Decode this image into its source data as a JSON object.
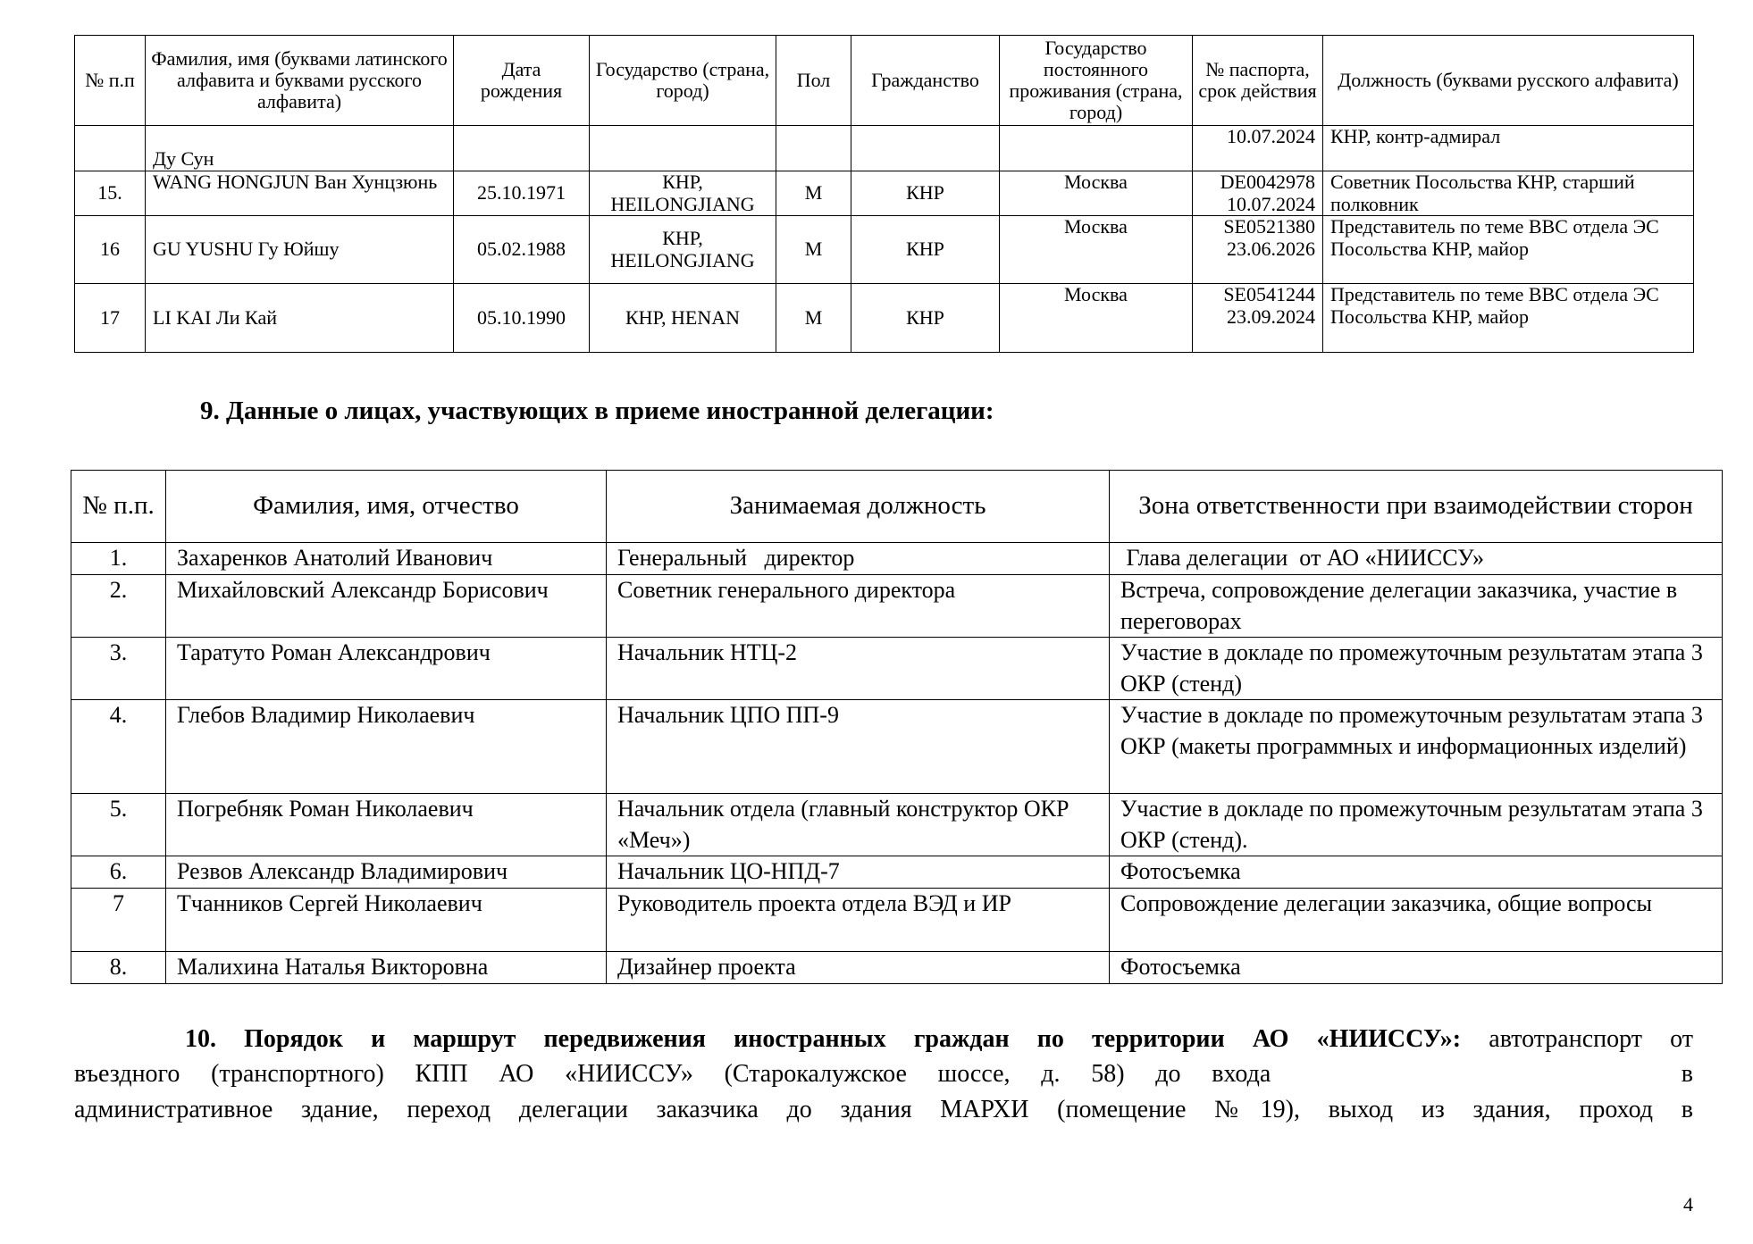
{
  "table1": {
    "headers": [
      "№ п.п",
      "Фамилия, имя (буквами латинского алфавита и буквами русского алфавита)",
      "Дата рождения",
      "Государство (страна, город)",
      "Пол",
      "Гражданство",
      "Государство постоянного проживания (страна, город)",
      "№ паспорта, срок действия",
      "Должность (буквами русского алфавита)"
    ],
    "rows": [
      {
        "num": "",
        "name": "Ду Сун",
        "dob": "",
        "origin": "",
        "sex": "",
        "citizenship": "",
        "residence": "",
        "passport": "10.07.2024",
        "position": "КНР, контр-адмирал"
      },
      {
        "num": "15.",
        "name": "WANG HONGJUN Ван Хунцзюнь",
        "dob": "25.10.1971",
        "origin": "КНР, HEILONGJIANG",
        "sex": "М",
        "citizenship": "КНР",
        "residence": "Москва",
        "passport": "DE0042978 10.07.2024",
        "position": "Советник Посольства КНР, старший полковник"
      },
      {
        "num": "16",
        "name": "GU YUSHU Гу Юйшу",
        "dob": "05.02.1988",
        "origin": "КНР, HEILONGJIANG",
        "sex": "М",
        "citizenship": "КНР",
        "residence": "Москва",
        "passport": "SE0521380 23.06.2026",
        "position": "Представитель по теме ВВС отдела ЭС Посольства КНР, майор"
      },
      {
        "num": "17",
        "name": "LI KAI Ли Кай",
        "dob": "05.10.1990",
        "origin": "КНР, HENAN",
        "sex": "М",
        "citizenship": "КНР",
        "residence": "Москва",
        "passport": "SE0541244 23.09.2024",
        "position": "Представитель по теме ВВС отдела ЭС Посольства КНР, майор"
      }
    ]
  },
  "section9": {
    "title": "9. Данные о лицах, участвующих в приеме иностранной делегации:"
  },
  "table2": {
    "headers": [
      "№ п.п.",
      "Фамилия, имя, отчество",
      "Занимаемая должность",
      "Зона ответственности при взаимодействии сторон"
    ],
    "rows": [
      {
        "num": "1.",
        "name": "Захаренков Анатолий Иванович",
        "position": "Генеральный   директор",
        "zone": " Глава делегации  от АО «НИИССУ»"
      },
      {
        "num": "2.",
        "name": "Михайловский Александр Борисович",
        "position": "Советник генерального директора",
        "zone": "Встреча, сопровождение делегации заказчика, участие в переговорах"
      },
      {
        "num": "3.",
        "name": "Таратуто Роман Александрович",
        "position": "Начальник НТЦ-2",
        "zone": "Участие в докладе  по промежуточным результатам этапа 3 ОКР (стенд)"
      },
      {
        "num": "4.",
        "name": "Глебов Владимир Николаевич",
        "position": "Начальник ЦПО ПП-9",
        "zone": "Участие в докладе  по промежуточным результатам этапа 3 ОКР (макеты программных и информационных изделий)"
      },
      {
        "num": "5.",
        "name": "Погребняк Роман Николаевич",
        "position": "Начальник отдела (главный конструктор ОКР «Меч»)",
        "zone": "Участие в докладе  по промежуточным результатам этапа 3 ОКР (стенд)."
      },
      {
        "num": "6.",
        "name": "Резвов Александр Владимирович",
        "position": "Начальник ЦО-НПД-7",
        "zone": "Фотосъемка"
      },
      {
        "num": "7",
        "name": "Тчанников Сергей Николаевич",
        "position": "Руководитель проекта отдела ВЭД и ИР",
        "zone": "Сопровождение делегации заказчика, общие вопросы"
      },
      {
        "num": "8.",
        "name": "Малихина Наталья Викторовна",
        "position": "Дизайнер проекта",
        "zone": "Фотосъемка"
      }
    ]
  },
  "section10": {
    "title": "10. Порядок и маршрут передвижения иностранных граждан по территории АО «НИИССУ»:",
    "line1_rest": "автотранспорт от",
    "line2a": "въездного (транспортного)  КПП АО «НИИССУ» (Старокалужское шоссе, д. 58)  до входа",
    "line2b": "в",
    "line3": "административное здание, переход делегации заказчика  до здания МАРХИ (помещение №19), выход из здания, проход в"
  },
  "page_number": "4"
}
